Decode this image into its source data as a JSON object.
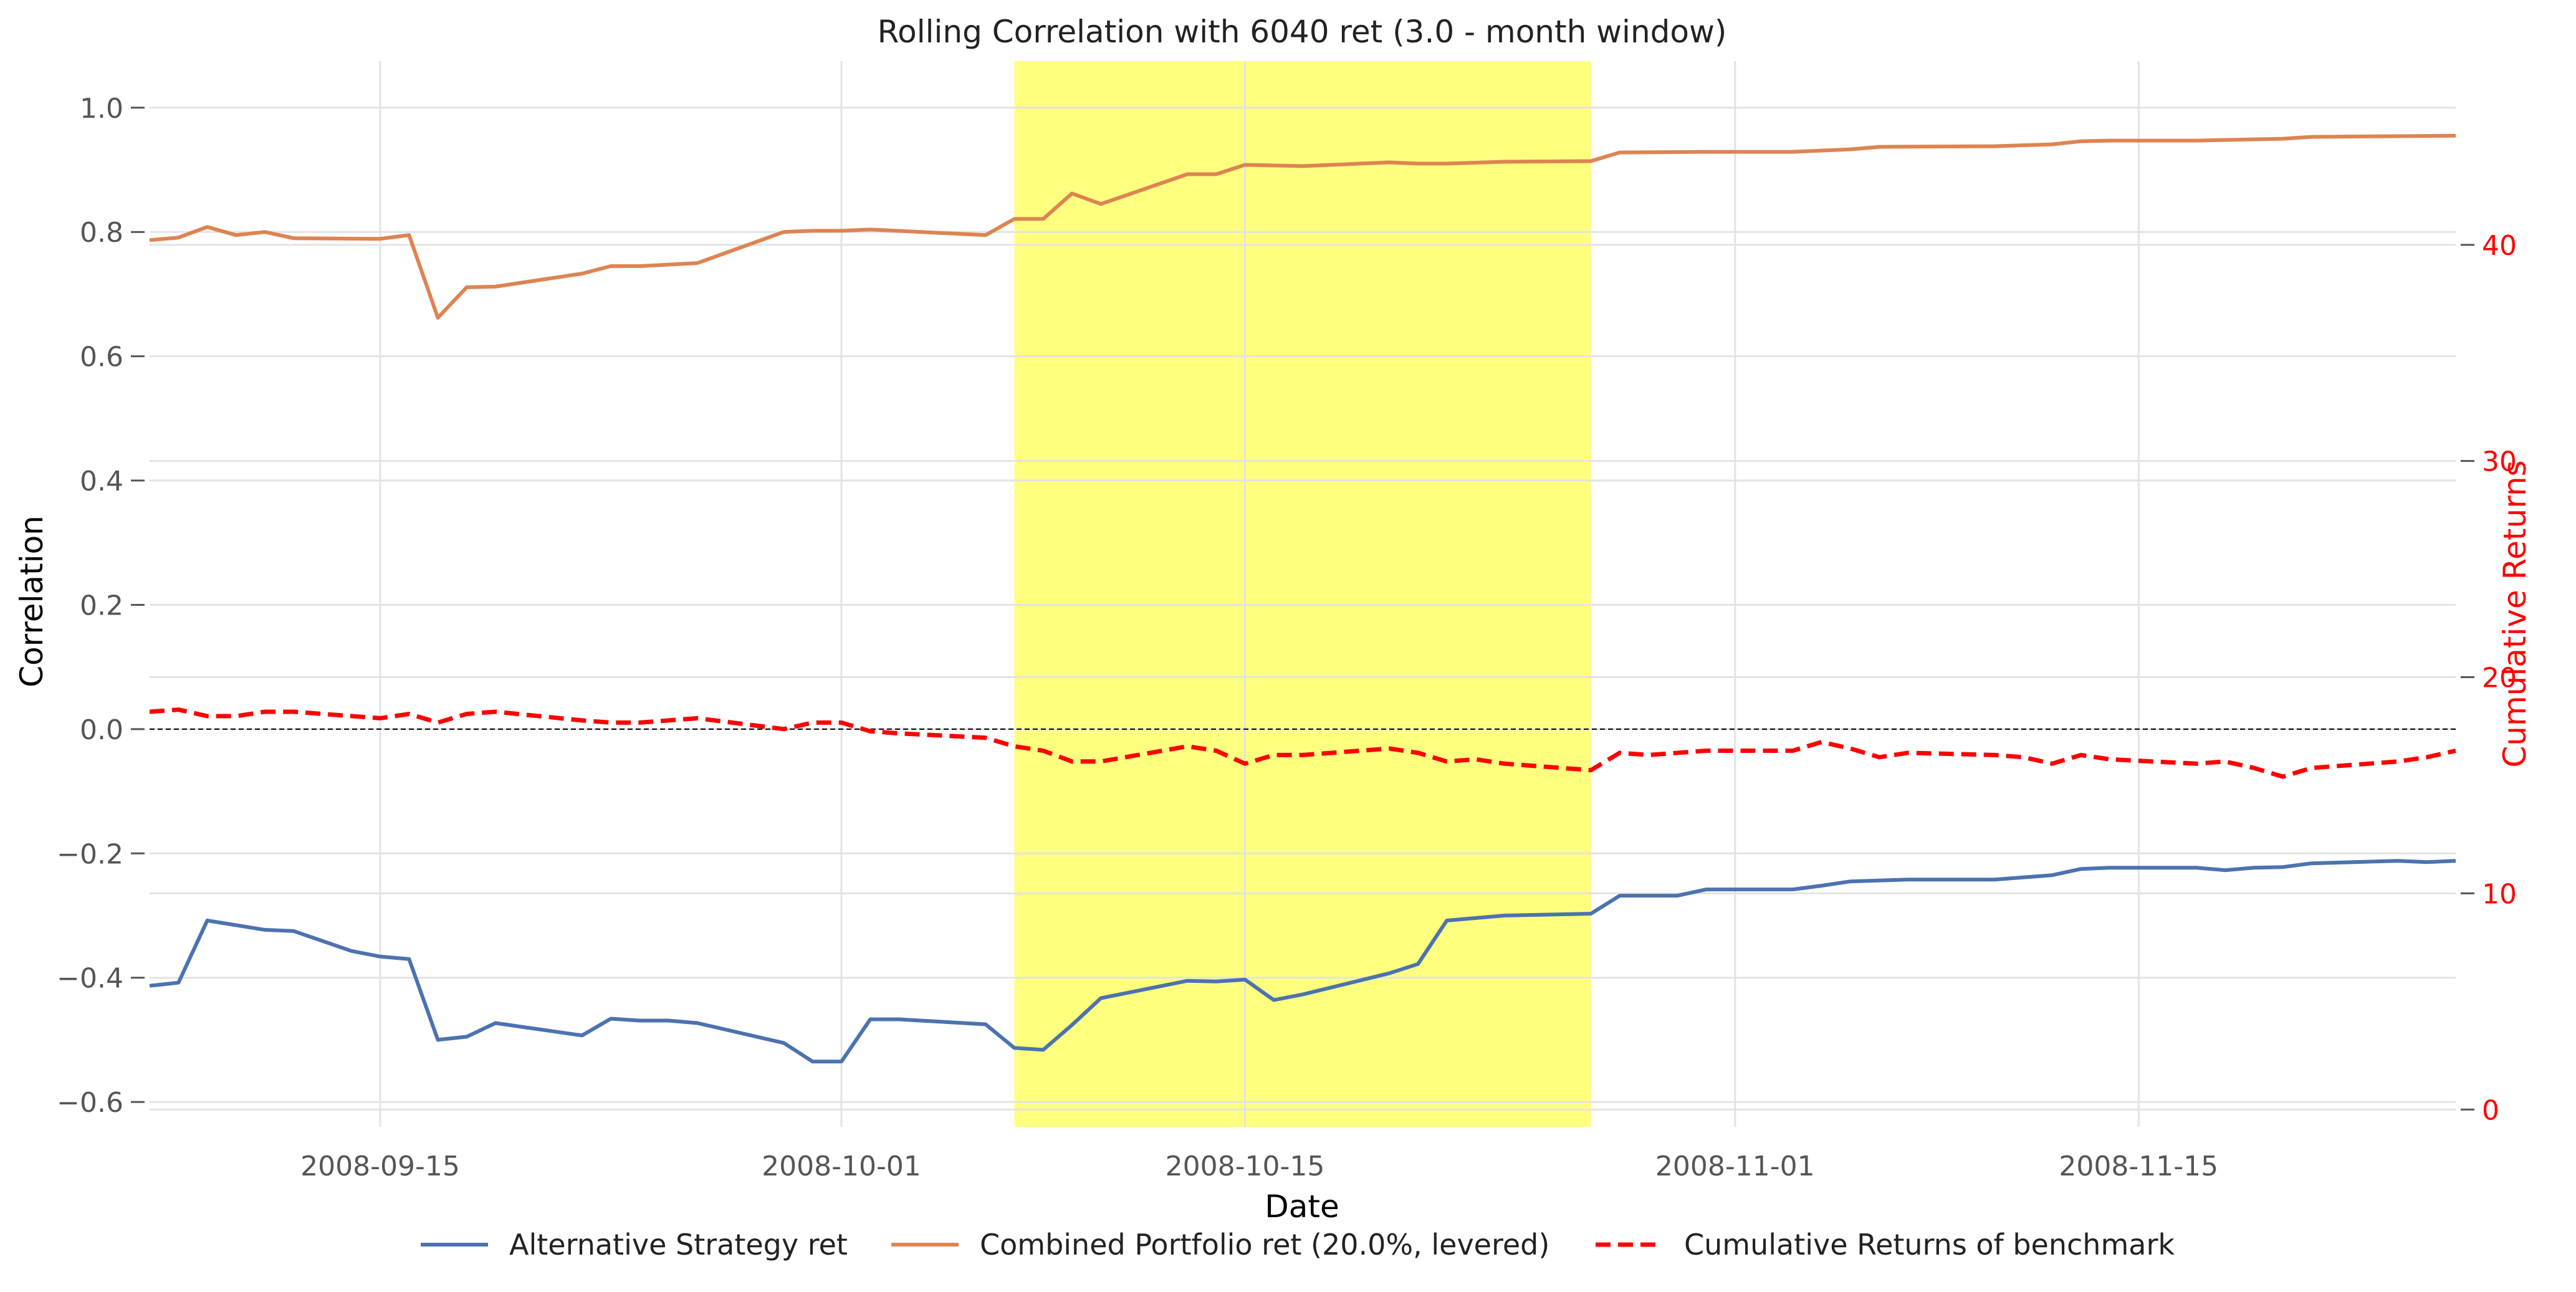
{
  "chart_data": {
    "type": "line",
    "title": "Rolling Correlation with 6040 ret (3.0 - month window)",
    "xlabel": "Date",
    "ylabel": "Correlation",
    "y2label": "Cumulative Returns",
    "xlim": [
      "2008-09-07",
      "2008-11-26"
    ],
    "ylim": [
      -0.64,
      1.075
    ],
    "y2lim": [
      -0.8,
      48.5
    ],
    "x_ticks": [
      "2008-09-15",
      "2008-10-01",
      "2008-10-15",
      "2008-11-01",
      "2008-11-15"
    ],
    "y_ticks": [
      1.0,
      0.8,
      0.6,
      0.4,
      0.2,
      0.0,
      -0.2,
      -0.4,
      -0.6
    ],
    "y_tick_labels": [
      "1.0",
      "0.8",
      "0.6",
      "0.4",
      "0.2",
      "0.0",
      "−0.2",
      "−0.4",
      "−0.6"
    ],
    "y2_ticks": [
      0,
      10,
      20,
      30,
      40
    ],
    "y2_tick_labels": [
      "0",
      "10",
      "20",
      "30",
      "40"
    ],
    "highlight_span": [
      "2008-10-07",
      "2008-10-27"
    ],
    "highlight_color": "#ffff7f",
    "zero_line": 0.0,
    "legend_position": "bottom-center",
    "grid": true,
    "series": [
      {
        "name": "Alternative Strategy ret",
        "axis": "left",
        "color": "#4c72b0",
        "style": "solid",
        "points": [
          [
            "2008-09-07",
            -0.413
          ],
          [
            "2008-09-08",
            -0.408
          ],
          [
            "2008-09-09",
            -0.308
          ],
          [
            "2008-09-11",
            -0.323
          ],
          [
            "2008-09-12",
            -0.325
          ],
          [
            "2008-09-14",
            -0.357
          ],
          [
            "2008-09-15",
            -0.366
          ],
          [
            "2008-09-16",
            -0.37
          ],
          [
            "2008-09-17",
            -0.5
          ],
          [
            "2008-09-18",
            -0.495
          ],
          [
            "2008-09-19",
            -0.473
          ],
          [
            "2008-09-22",
            -0.493
          ],
          [
            "2008-09-23",
            -0.466
          ],
          [
            "2008-09-24",
            -0.469
          ],
          [
            "2008-09-25",
            -0.469
          ],
          [
            "2008-09-26",
            -0.473
          ],
          [
            "2008-09-29",
            -0.505
          ],
          [
            "2008-09-30",
            -0.535
          ],
          [
            "2008-10-01",
            -0.535
          ],
          [
            "2008-10-02",
            -0.467
          ],
          [
            "2008-10-03",
            -0.467
          ],
          [
            "2008-10-06",
            -0.475
          ],
          [
            "2008-10-07",
            -0.513
          ],
          [
            "2008-10-08",
            -0.516
          ],
          [
            "2008-10-09",
            -0.476
          ],
          [
            "2008-10-10",
            -0.433
          ],
          [
            "2008-10-13",
            -0.405
          ],
          [
            "2008-10-14",
            -0.406
          ],
          [
            "2008-10-15",
            -0.403
          ],
          [
            "2008-10-16",
            -0.436
          ],
          [
            "2008-10-17",
            -0.427
          ],
          [
            "2008-10-20",
            -0.393
          ],
          [
            "2008-10-21",
            -0.378
          ],
          [
            "2008-10-22",
            -0.308
          ],
          [
            "2008-10-24",
            -0.3
          ],
          [
            "2008-10-27",
            -0.297
          ],
          [
            "2008-10-28",
            -0.268
          ],
          [
            "2008-10-30",
            -0.268
          ],
          [
            "2008-10-31",
            -0.258
          ],
          [
            "2008-11-03",
            -0.258
          ],
          [
            "2008-11-04",
            -0.252
          ],
          [
            "2008-11-05",
            -0.245
          ],
          [
            "2008-11-07",
            -0.242
          ],
          [
            "2008-11-10",
            -0.242
          ],
          [
            "2008-11-12",
            -0.235
          ],
          [
            "2008-11-13",
            -0.225
          ],
          [
            "2008-11-14",
            -0.223
          ],
          [
            "2008-11-17",
            -0.223
          ],
          [
            "2008-11-18",
            -0.227
          ],
          [
            "2008-11-19",
            -0.223
          ],
          [
            "2008-11-20",
            -0.222
          ],
          [
            "2008-11-21",
            -0.216
          ],
          [
            "2008-11-24",
            -0.212
          ],
          [
            "2008-11-25",
            -0.214
          ],
          [
            "2008-11-26",
            -0.212
          ]
        ]
      },
      {
        "name": "Combined Portfolio ret (20.0%, levered)",
        "axis": "left",
        "color": "#dd8452",
        "style": "solid",
        "points": [
          [
            "2008-09-07",
            0.787
          ],
          [
            "2008-09-08",
            0.791
          ],
          [
            "2008-09-09",
            0.808
          ],
          [
            "2008-09-10",
            0.795
          ],
          [
            "2008-09-11",
            0.8
          ],
          [
            "2008-09-12",
            0.79
          ],
          [
            "2008-09-15",
            0.789
          ],
          [
            "2008-09-16",
            0.795
          ],
          [
            "2008-09-17",
            0.662
          ],
          [
            "2008-09-18",
            0.711
          ],
          [
            "2008-09-19",
            0.712
          ],
          [
            "2008-09-22",
            0.733
          ],
          [
            "2008-09-23",
            0.745
          ],
          [
            "2008-09-24",
            0.745
          ],
          [
            "2008-09-26",
            0.75
          ],
          [
            "2008-09-29",
            0.8
          ],
          [
            "2008-09-30",
            0.802
          ],
          [
            "2008-10-01",
            0.802
          ],
          [
            "2008-10-02",
            0.804
          ],
          [
            "2008-10-06",
            0.795
          ],
          [
            "2008-10-07",
            0.821
          ],
          [
            "2008-10-08",
            0.821
          ],
          [
            "2008-10-09",
            0.862
          ],
          [
            "2008-10-10",
            0.845
          ],
          [
            "2008-10-13",
            0.893
          ],
          [
            "2008-10-14",
            0.893
          ],
          [
            "2008-10-15",
            0.908
          ],
          [
            "2008-10-17",
            0.906
          ],
          [
            "2008-10-20",
            0.912
          ],
          [
            "2008-10-21",
            0.91
          ],
          [
            "2008-10-22",
            0.91
          ],
          [
            "2008-10-24",
            0.913
          ],
          [
            "2008-10-27",
            0.914
          ],
          [
            "2008-10-28",
            0.928
          ],
          [
            "2008-10-31",
            0.929
          ],
          [
            "2008-11-03",
            0.929
          ],
          [
            "2008-11-05",
            0.933
          ],
          [
            "2008-11-06",
            0.937
          ],
          [
            "2008-11-10",
            0.938
          ],
          [
            "2008-11-12",
            0.941
          ],
          [
            "2008-11-13",
            0.946
          ],
          [
            "2008-11-14",
            0.947
          ],
          [
            "2008-11-17",
            0.947
          ],
          [
            "2008-11-20",
            0.95
          ],
          [
            "2008-11-21",
            0.953
          ],
          [
            "2008-11-26",
            0.955
          ]
        ]
      },
      {
        "name": "Cumulative Returns of benchmark",
        "axis": "right",
        "color": "#ff0000",
        "style": "dashed",
        "points": [
          [
            "2008-09-07",
            18.4
          ],
          [
            "2008-09-08",
            18.5
          ],
          [
            "2008-09-09",
            18.2
          ],
          [
            "2008-09-10",
            18.2
          ],
          [
            "2008-09-11",
            18.4
          ],
          [
            "2008-09-12",
            18.4
          ],
          [
            "2008-09-15",
            18.1
          ],
          [
            "2008-09-16",
            18.3
          ],
          [
            "2008-09-17",
            17.9
          ],
          [
            "2008-09-18",
            18.3
          ],
          [
            "2008-09-19",
            18.4
          ],
          [
            "2008-09-22",
            18.0
          ],
          [
            "2008-09-23",
            17.9
          ],
          [
            "2008-09-24",
            17.9
          ],
          [
            "2008-09-25",
            18.0
          ],
          [
            "2008-09-26",
            18.1
          ],
          [
            "2008-09-29",
            17.6
          ],
          [
            "2008-09-30",
            17.9
          ],
          [
            "2008-10-01",
            17.9
          ],
          [
            "2008-10-02",
            17.5
          ],
          [
            "2008-10-03",
            17.4
          ],
          [
            "2008-10-06",
            17.2
          ],
          [
            "2008-10-07",
            16.8
          ],
          [
            "2008-10-08",
            16.6
          ],
          [
            "2008-10-09",
            16.1
          ],
          [
            "2008-10-10",
            16.1
          ],
          [
            "2008-10-13",
            16.8
          ],
          [
            "2008-10-14",
            16.6
          ],
          [
            "2008-10-15",
            16.0
          ],
          [
            "2008-10-16",
            16.4
          ],
          [
            "2008-10-17",
            16.4
          ],
          [
            "2008-10-20",
            16.7
          ],
          [
            "2008-10-21",
            16.5
          ],
          [
            "2008-10-22",
            16.1
          ],
          [
            "2008-10-23",
            16.2
          ],
          [
            "2008-10-24",
            16.0
          ],
          [
            "2008-10-27",
            15.7
          ],
          [
            "2008-10-28",
            16.5
          ],
          [
            "2008-10-29",
            16.4
          ],
          [
            "2008-10-31",
            16.6
          ],
          [
            "2008-11-03",
            16.6
          ],
          [
            "2008-11-04",
            17.0
          ],
          [
            "2008-11-05",
            16.7
          ],
          [
            "2008-11-06",
            16.3
          ],
          [
            "2008-11-07",
            16.5
          ],
          [
            "2008-11-10",
            16.4
          ],
          [
            "2008-11-11",
            16.3
          ],
          [
            "2008-11-12",
            16.0
          ],
          [
            "2008-11-13",
            16.4
          ],
          [
            "2008-11-14",
            16.2
          ],
          [
            "2008-11-17",
            16.0
          ],
          [
            "2008-11-18",
            16.1
          ],
          [
            "2008-11-19",
            15.8
          ],
          [
            "2008-11-20",
            15.4
          ],
          [
            "2008-11-21",
            15.8
          ],
          [
            "2008-11-24",
            16.1
          ],
          [
            "2008-11-25",
            16.3
          ],
          [
            "2008-11-26",
            16.6
          ]
        ]
      }
    ]
  }
}
